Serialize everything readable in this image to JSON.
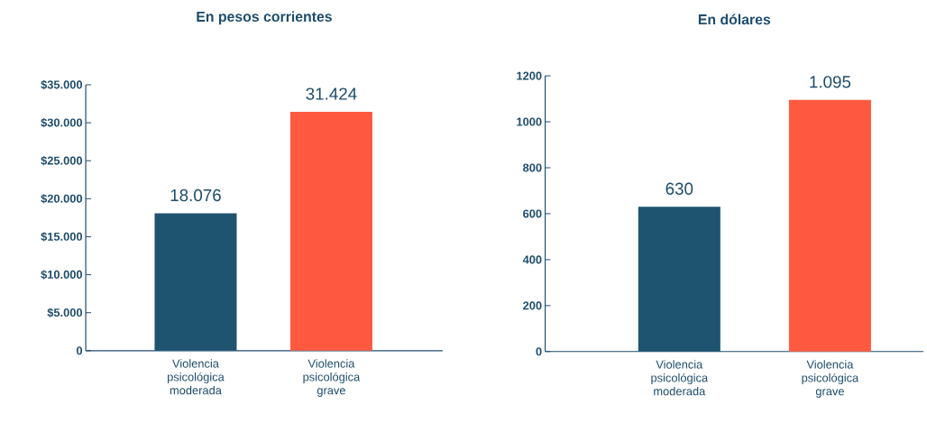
{
  "chart_data": [
    {
      "type": "bar",
      "title": "En pesos corrientes",
      "categories": [
        "Violencia psicológica moderada",
        "Violencia psicológica grave"
      ],
      "values": [
        18076,
        31424
      ],
      "value_labels": [
        "18.076",
        "31.424"
      ],
      "colors": [
        "#1e5470",
        "#ff5a40"
      ],
      "ylim": [
        0,
        35000
      ],
      "yticks": [
        {
          "value": 0,
          "label": "0"
        },
        {
          "value": 5000,
          "label": "$5.000"
        },
        {
          "value": 10000,
          "label": "$10.000"
        },
        {
          "value": 15000,
          "label": "$15.000"
        },
        {
          "value": 20000,
          "label": "$20.000"
        },
        {
          "value": 25000,
          "label": "$25.000"
        },
        {
          "value": 30000,
          "label": "$30.000"
        },
        {
          "value": 35000,
          "label": "$35.000"
        }
      ]
    },
    {
      "type": "bar",
      "title": "En dólares",
      "categories": [
        "Violencia psicológica moderada",
        "Violencia psicológica grave"
      ],
      "values": [
        630,
        1095
      ],
      "value_labels": [
        "630",
        "1.095"
      ],
      "colors": [
        "#1e5470",
        "#ff5a40"
      ],
      "ylim": [
        0,
        1200
      ],
      "yticks": [
        0,
        200,
        400,
        600,
        800,
        1000,
        1200
      ]
    }
  ]
}
